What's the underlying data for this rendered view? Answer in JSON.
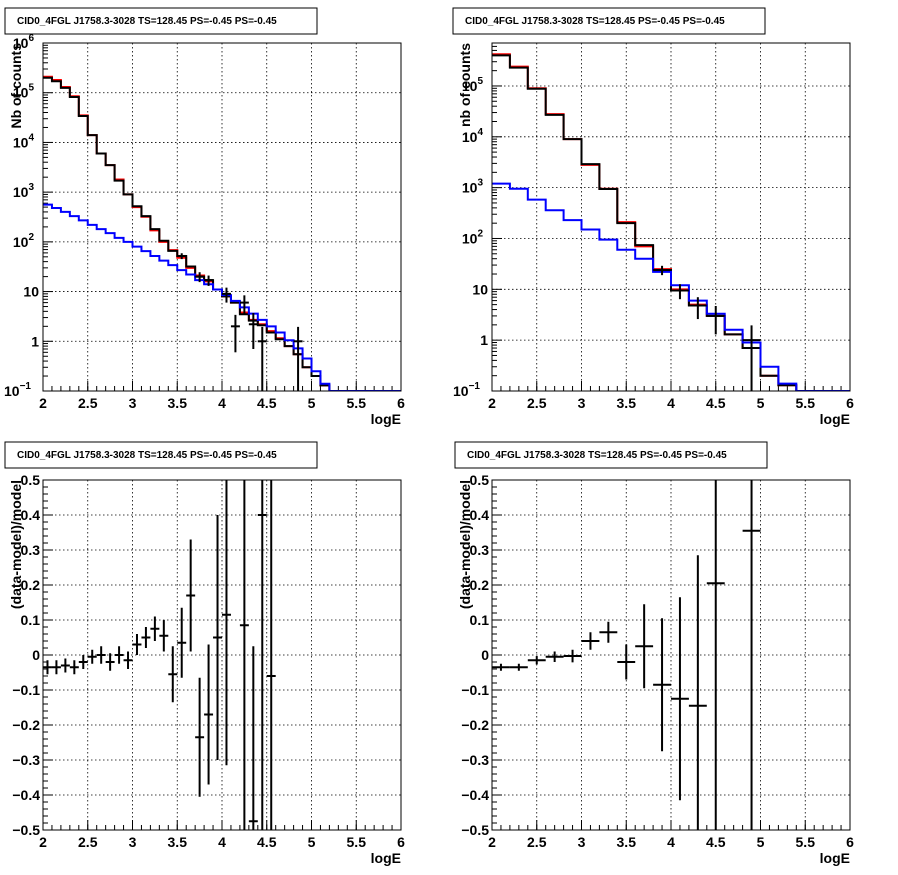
{
  "chart_data": [
    {
      "id": "top-left",
      "type": "line",
      "title": "CID0_4FGL J1758.3-3028 TS=128.45 PS=-0.45 PS=-0.45",
      "xlabel": "logE",
      "ylabel": "Nb of counts",
      "xlim": [
        2,
        6
      ],
      "ylim": [
        0.1,
        1000000
      ],
      "log_y": true,
      "grid": true,
      "x_tick_labels": [
        "2",
        "2.5",
        "3",
        "3.5",
        "4",
        "4.5",
        "5",
        "5.5",
        "6"
      ],
      "y_tick_labels": [
        "10",
        "1",
        "10",
        "10²",
        "10³",
        "10⁴",
        "10⁵",
        "10⁶"
      ],
      "series": [
        {
          "color": "#ff0000",
          "bin_edges": [
            2.0,
            2.1,
            2.2,
            2.3,
            2.4,
            2.5,
            2.6,
            2.7,
            2.8,
            2.9,
            3.0,
            3.1,
            3.2,
            3.3,
            3.4,
            3.5,
            3.6,
            3.7,
            3.8,
            3.9,
            4.0,
            4.1,
            4.2,
            4.3,
            4.4,
            4.5,
            4.6,
            4.7,
            4.8,
            4.9,
            5.0,
            5.1,
            5.2,
            5.3,
            5.4,
            5.5,
            5.6,
            5.7,
            5.8,
            5.9,
            6.0
          ],
          "values": [
            210000,
            180000,
            130000,
            85000,
            35000,
            14000,
            6000,
            3500,
            1800,
            900,
            500,
            320,
            170,
            100,
            68,
            48,
            30,
            21,
            16,
            11,
            8,
            6,
            3.8,
            2.7,
            2.2,
            1.6,
            1.15,
            0.8,
            0.55,
            0.3,
            0.2,
            0.13,
            0.1,
            0.1,
            0.1,
            0.1,
            0.1,
            0.1,
            0.1,
            0.1
          ]
        },
        {
          "color": "#000000",
          "bin_edges": [
            2.0,
            2.1,
            2.2,
            2.3,
            2.4,
            2.5,
            2.6,
            2.7,
            2.8,
            2.9,
            3.0,
            3.1,
            3.2,
            3.3,
            3.4,
            3.5,
            3.6,
            3.7,
            3.8,
            3.9,
            4.0,
            4.1,
            4.2,
            4.3,
            4.4,
            4.5,
            4.6,
            4.7,
            4.8,
            4.9,
            5.0,
            5.1,
            5.2,
            5.3,
            5.4,
            5.5,
            5.6,
            5.7,
            5.8,
            5.9,
            6.0
          ],
          "values": [
            200000,
            170000,
            125000,
            82000,
            34000,
            14000,
            6000,
            3500,
            1700,
            900,
            520,
            330,
            180,
            105,
            66,
            52,
            32,
            20,
            17,
            11,
            8,
            6,
            3.5,
            2.6,
            2.1,
            1.5,
            1.1,
            0.8,
            0.55,
            0.3,
            0.2,
            0.13,
            0.1,
            0.1,
            0.1,
            0.1,
            0.1,
            0.1,
            0.1,
            0.1
          ]
        },
        {
          "color": "#0000ff",
          "bin_edges": [
            2.0,
            2.1,
            2.2,
            2.3,
            2.4,
            2.5,
            2.6,
            2.7,
            2.8,
            2.9,
            3.0,
            3.1,
            3.2,
            3.3,
            3.4,
            3.5,
            3.6,
            3.7,
            3.8,
            3.9,
            4.0,
            4.1,
            4.2,
            4.3,
            4.4,
            4.5,
            4.6,
            4.7,
            4.8,
            4.9,
            5.0,
            5.1,
            5.2,
            5.3,
            5.4,
            5.5,
            5.6,
            5.7,
            5.8,
            5.9,
            6.0
          ],
          "values": [
            560,
            480,
            400,
            330,
            270,
            220,
            180,
            150,
            120,
            100,
            80,
            65,
            52,
            42,
            34,
            27,
            22,
            17,
            14,
            11,
            8.5,
            6.5,
            4.8,
            3.6,
            2.7,
            2.0,
            1.5,
            1.05,
            0.72,
            0.45,
            0.25,
            0.14,
            0.1,
            0.1,
            0.1,
            0.1,
            0.1,
            0.1,
            0.1,
            0.1
          ]
        }
      ],
      "data_points": [
        {
          "x": 3.55,
          "y": 52,
          "yerr": 7,
          "xerr": 0.05
        },
        {
          "x": 3.75,
          "y": 20,
          "yerr": 4.5,
          "xerr": 0.05
        },
        {
          "x": 3.85,
          "y": 17,
          "yerr": 4,
          "xerr": 0.05
        },
        {
          "x": 4.05,
          "y": 9,
          "yerr": 3,
          "xerr": 0.05
        },
        {
          "x": 4.15,
          "y": 2,
          "yerr": 1.4,
          "xerr": 0.05
        },
        {
          "x": 4.25,
          "y": 6,
          "yerr": 2.4,
          "xerr": 0.05
        },
        {
          "x": 4.35,
          "y": 2.2,
          "yerr": 1.5,
          "xerr": 0.05
        },
        {
          "x": 4.45,
          "y": 1,
          "yerr": 0.95,
          "xerr": 0.05
        },
        {
          "x": 4.85,
          "y": 1,
          "yerr": 0.95,
          "xerr": 0.05
        }
      ]
    },
    {
      "id": "top-right",
      "type": "line",
      "title": "CID0_4FGL J1758.3-3028 TS=128.45 PS=-0.45 PS=-0.45",
      "xlabel": "logE",
      "ylabel": "nb of counts",
      "xlim": [
        2,
        6
      ],
      "ylim": [
        0.1,
        700000
      ],
      "log_y": true,
      "grid": true,
      "x_tick_labels": [
        "2",
        "2.5",
        "3",
        "3.5",
        "4",
        "4.5",
        "5",
        "5.5",
        "6"
      ],
      "y_tick_labels": [
        "10",
        "1",
        "10",
        "10²",
        "10³",
        "10⁴",
        "10⁵"
      ],
      "series": [
        {
          "color": "#ff0000",
          "bin_edges": [
            2.0,
            2.2,
            2.4,
            2.6,
            2.8,
            3.0,
            3.2,
            3.4,
            3.6,
            3.8,
            4.0,
            4.2,
            4.4,
            4.6,
            4.8,
            5.0,
            5.2,
            5.4,
            5.6,
            5.8,
            6.0
          ],
          "values": [
            420000,
            240000,
            90000,
            28000,
            9000,
            2800,
            950,
            210,
            70,
            25,
            10,
            5,
            3,
            1.3,
            0.7,
            0.2,
            0.13,
            0.1,
            0.1,
            0.1
          ]
        },
        {
          "color": "#000000",
          "bin_edges": [
            2.0,
            2.2,
            2.4,
            2.6,
            2.8,
            3.0,
            3.2,
            3.4,
            3.6,
            3.8,
            4.0,
            4.2,
            4.4,
            4.6,
            4.8,
            5.0,
            5.2,
            5.4,
            5.6,
            5.8,
            6.0
          ],
          "values": [
            400000,
            230000,
            88000,
            27000,
            9000,
            2900,
            940,
            200,
            74,
            24,
            9.5,
            4.8,
            3,
            1.3,
            0.7,
            0.2,
            0.13,
            0.1,
            0.1,
            0.1
          ]
        },
        {
          "color": "#0000ff",
          "bin_edges": [
            2.0,
            2.2,
            2.4,
            2.6,
            2.8,
            3.0,
            3.2,
            3.4,
            3.6,
            3.8,
            4.0,
            4.2,
            4.4,
            4.6,
            4.8,
            5.0,
            5.2,
            5.4,
            5.6,
            5.8,
            6.0
          ],
          "values": [
            1200,
            950,
            580,
            360,
            230,
            150,
            95,
            60,
            40,
            22,
            12,
            6,
            3.3,
            1.6,
            0.9,
            0.3,
            0.14,
            0.1,
            0.1,
            0.1
          ]
        }
      ],
      "data_points": [
        {
          "x": 3.9,
          "y": 24,
          "yerr": 5,
          "xerr": 0.1
        },
        {
          "x": 4.1,
          "y": 9.5,
          "yerr": 3.1,
          "xerr": 0.1
        },
        {
          "x": 4.3,
          "y": 4.8,
          "yerr": 2.2,
          "xerr": 0.1
        },
        {
          "x": 4.5,
          "y": 3,
          "yerr": 1.7,
          "xerr": 0.1
        },
        {
          "x": 4.9,
          "y": 1,
          "yerr": 0.95,
          "xerr": 0.1
        }
      ]
    },
    {
      "id": "bottom-left",
      "type": "scatter",
      "title": "CID0_4FGL J1758.3-3028 TS=128.45 PS=-0.45 PS=-0.45",
      "xlabel": "logE",
      "ylabel": "(data-model)/model",
      "xlim": [
        2,
        6
      ],
      "ylim": [
        -0.5,
        0.5
      ],
      "grid": true,
      "x_tick_labels": [
        "2",
        "2.5",
        "3",
        "3.5",
        "4",
        "4.5",
        "5",
        "5.5",
        "6"
      ],
      "y_tick_labels": [
        "−0.5",
        "−0.4",
        "−0.3",
        "−0.2",
        "−0.1",
        "0",
        "0.1",
        "0.2",
        "0.3",
        "0.4",
        "0.5"
      ],
      "points": [
        {
          "x": 2.05,
          "y": -0.035,
          "yerr": 0.02,
          "xerr": 0.05
        },
        {
          "x": 2.15,
          "y": -0.035,
          "yerr": 0.02,
          "xerr": 0.05
        },
        {
          "x": 2.25,
          "y": -0.03,
          "yerr": 0.02,
          "xerr": 0.05
        },
        {
          "x": 2.35,
          "y": -0.035,
          "yerr": 0.02,
          "xerr": 0.05
        },
        {
          "x": 2.45,
          "y": -0.02,
          "yerr": 0.02,
          "xerr": 0.05
        },
        {
          "x": 2.55,
          "y": -0.005,
          "yerr": 0.02,
          "xerr": 0.05
        },
        {
          "x": 2.65,
          "y": 0,
          "yerr": 0.025,
          "xerr": 0.05
        },
        {
          "x": 2.75,
          "y": -0.02,
          "yerr": 0.025,
          "xerr": 0.05
        },
        {
          "x": 2.85,
          "y": 0,
          "yerr": 0.025,
          "xerr": 0.05
        },
        {
          "x": 2.95,
          "y": -0.015,
          "yerr": 0.025,
          "xerr": 0.05
        },
        {
          "x": 3.05,
          "y": 0.03,
          "yerr": 0.03,
          "xerr": 0.05
        },
        {
          "x": 3.15,
          "y": 0.05,
          "yerr": 0.03,
          "xerr": 0.05
        },
        {
          "x": 3.25,
          "y": 0.075,
          "yerr": 0.035,
          "xerr": 0.05
        },
        {
          "x": 3.35,
          "y": 0.055,
          "yerr": 0.045,
          "xerr": 0.05
        },
        {
          "x": 3.45,
          "y": -0.055,
          "yerr": 0.08,
          "xerr": 0.05
        },
        {
          "x": 3.55,
          "y": 0.035,
          "yerr": 0.1,
          "xerr": 0.05
        },
        {
          "x": 3.65,
          "y": 0.17,
          "yerr": 0.16,
          "xerr": 0.05
        },
        {
          "x": 3.75,
          "y": -0.235,
          "yerr": 0.17,
          "xerr": 0.05
        },
        {
          "x": 3.85,
          "y": -0.17,
          "yerr": 0.2,
          "xerr": 0.05
        },
        {
          "x": 3.95,
          "y": 0.05,
          "yerr": 0.35,
          "xerr": 0.05
        },
        {
          "x": 4.05,
          "y": 0.115,
          "yerr": 0.43,
          "xerr": 0.05
        },
        {
          "x": 4.25,
          "y": 0.085,
          "yerr": 0.7,
          "xerr": 0.05
        },
        {
          "x": 4.35,
          "y": -0.475,
          "yerr": 0.5,
          "xerr": 0.05
        },
        {
          "x": 4.45,
          "y": 0.4,
          "yerr": 1.0,
          "xerr": 0.05
        },
        {
          "x": 4.55,
          "y": -0.06,
          "yerr": 1.0,
          "xerr": 0.05
        }
      ]
    },
    {
      "id": "bottom-right",
      "type": "scatter",
      "title": "CID0_4FGL J1758.3-3028 TS=128.45 PS=-0.45 PS=-0.45",
      "xlabel": "logE",
      "ylabel": "(data-model)/model",
      "xlim": [
        2,
        6
      ],
      "ylim": [
        -0.5,
        0.5
      ],
      "grid": true,
      "x_tick_labels": [
        "2",
        "2.5",
        "3",
        "3.5",
        "4",
        "4.5",
        "5",
        "5.5",
        "6"
      ],
      "y_tick_labels": [
        "−0.5",
        "−0.4",
        "−0.3",
        "−0.2",
        "−0.1",
        "0",
        "0.1",
        "0.2",
        "0.3",
        "0.4",
        "0.5"
      ],
      "points": [
        {
          "x": 2.1,
          "y": -0.035,
          "yerr": 0.01,
          "xerr": 0.1
        },
        {
          "x": 2.3,
          "y": -0.035,
          "yerr": 0.01,
          "xerr": 0.1
        },
        {
          "x": 2.5,
          "y": -0.015,
          "yerr": 0.012,
          "xerr": 0.1
        },
        {
          "x": 2.7,
          "y": -0.005,
          "yerr": 0.015,
          "xerr": 0.1
        },
        {
          "x": 2.9,
          "y": -0.003,
          "yerr": 0.018,
          "xerr": 0.1
        },
        {
          "x": 3.1,
          "y": 0.04,
          "yerr": 0.025,
          "xerr": 0.1
        },
        {
          "x": 3.3,
          "y": 0.065,
          "yerr": 0.03,
          "xerr": 0.1
        },
        {
          "x": 3.5,
          "y": -0.02,
          "yerr": 0.05,
          "xerr": 0.1
        },
        {
          "x": 3.7,
          "y": 0.025,
          "yerr": 0.12,
          "xerr": 0.1
        },
        {
          "x": 3.9,
          "y": -0.085,
          "yerr": 0.19,
          "xerr": 0.1
        },
        {
          "x": 4.1,
          "y": -0.125,
          "yerr": 0.29,
          "xerr": 0.1
        },
        {
          "x": 4.3,
          "y": -0.145,
          "yerr": 0.43,
          "xerr": 0.1
        },
        {
          "x": 4.5,
          "y": 0.205,
          "yerr": 0.8,
          "xerr": 0.1
        },
        {
          "x": 4.9,
          "y": 0.355,
          "yerr": 1.0,
          "xerr": 0.1
        }
      ]
    }
  ]
}
